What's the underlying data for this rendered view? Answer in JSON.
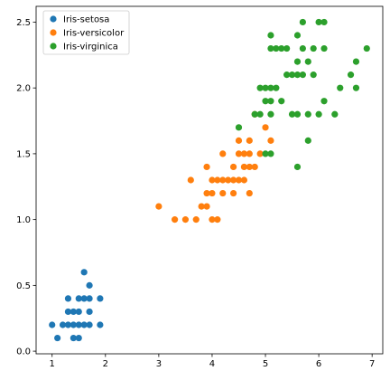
{
  "chart_data": {
    "type": "scatter",
    "title": "",
    "xlabel": "",
    "ylabel": "",
    "xlim": [
      0.7,
      7.2
    ],
    "ylim": [
      -0.02,
      2.62
    ],
    "x_ticks": [
      1,
      2,
      3,
      4,
      5,
      6,
      7
    ],
    "y_ticks": [
      0.0,
      0.5,
      1.0,
      1.5,
      2.0,
      2.5
    ],
    "x_tick_labels": [
      "1",
      "2",
      "3",
      "4",
      "5",
      "6",
      "7"
    ],
    "y_tick_labels": [
      "0.0",
      "0.5",
      "1.0",
      "1.5",
      "2.0",
      "2.5"
    ],
    "grid": false,
    "legend": "top-left",
    "series": [
      {
        "name": "Iris-setosa",
        "color": "#1f77b4",
        "points": [
          [
            1.0,
            0.2
          ],
          [
            1.1,
            0.1
          ],
          [
            1.2,
            0.2
          ],
          [
            1.3,
            0.2
          ],
          [
            1.3,
            0.3
          ],
          [
            1.3,
            0.4
          ],
          [
            1.4,
            0.1
          ],
          [
            1.4,
            0.2
          ],
          [
            1.4,
            0.3
          ],
          [
            1.5,
            0.1
          ],
          [
            1.5,
            0.2
          ],
          [
            1.5,
            0.3
          ],
          [
            1.5,
            0.4
          ],
          [
            1.6,
            0.2
          ],
          [
            1.6,
            0.4
          ],
          [
            1.6,
            0.6
          ],
          [
            1.7,
            0.2
          ],
          [
            1.7,
            0.3
          ],
          [
            1.7,
            0.4
          ],
          [
            1.7,
            0.5
          ],
          [
            1.9,
            0.2
          ],
          [
            1.9,
            0.4
          ]
        ]
      },
      {
        "name": "Iris-versicolor",
        "color": "#ff7f0e",
        "points": [
          [
            3.0,
            1.1
          ],
          [
            3.3,
            1.0
          ],
          [
            3.5,
            1.0
          ],
          [
            3.6,
            1.3
          ],
          [
            3.7,
            1.0
          ],
          [
            3.8,
            1.1
          ],
          [
            3.9,
            1.1
          ],
          [
            3.9,
            1.2
          ],
          [
            3.9,
            1.4
          ],
          [
            4.0,
            1.0
          ],
          [
            4.0,
            1.2
          ],
          [
            4.0,
            1.3
          ],
          [
            4.1,
            1.0
          ],
          [
            4.1,
            1.3
          ],
          [
            4.2,
            1.2
          ],
          [
            4.2,
            1.3
          ],
          [
            4.2,
            1.5
          ],
          [
            4.3,
            1.3
          ],
          [
            4.4,
            1.2
          ],
          [
            4.4,
            1.3
          ],
          [
            4.4,
            1.4
          ],
          [
            4.5,
            1.3
          ],
          [
            4.5,
            1.5
          ],
          [
            4.5,
            1.6
          ],
          [
            4.6,
            1.3
          ],
          [
            4.6,
            1.4
          ],
          [
            4.6,
            1.5
          ],
          [
            4.7,
            1.2
          ],
          [
            4.7,
            1.4
          ],
          [
            4.7,
            1.5
          ],
          [
            4.7,
            1.6
          ],
          [
            4.8,
            1.4
          ],
          [
            4.8,
            1.8
          ],
          [
            4.9,
            1.5
          ],
          [
            5.0,
            1.7
          ],
          [
            5.1,
            1.6
          ]
        ]
      },
      {
        "name": "Iris-virginica",
        "color": "#2ca02c",
        "points": [
          [
            4.5,
            1.7
          ],
          [
            4.8,
            1.8
          ],
          [
            4.9,
            1.8
          ],
          [
            4.9,
            2.0
          ],
          [
            5.0,
            1.5
          ],
          [
            5.0,
            1.9
          ],
          [
            5.0,
            2.0
          ],
          [
            5.1,
            1.5
          ],
          [
            5.1,
            1.8
          ],
          [
            5.1,
            1.9
          ],
          [
            5.1,
            2.0
          ],
          [
            5.1,
            2.3
          ],
          [
            5.1,
            2.4
          ],
          [
            5.2,
            2.0
          ],
          [
            5.2,
            2.3
          ],
          [
            5.3,
            1.9
          ],
          [
            5.3,
            2.3
          ],
          [
            5.4,
            2.1
          ],
          [
            5.4,
            2.3
          ],
          [
            5.5,
            1.8
          ],
          [
            5.5,
            2.1
          ],
          [
            5.6,
            1.4
          ],
          [
            5.6,
            1.8
          ],
          [
            5.6,
            2.1
          ],
          [
            5.6,
            2.2
          ],
          [
            5.6,
            2.4
          ],
          [
            5.7,
            2.1
          ],
          [
            5.7,
            2.3
          ],
          [
            5.7,
            2.5
          ],
          [
            5.8,
            1.6
          ],
          [
            5.8,
            1.8
          ],
          [
            5.8,
            2.2
          ],
          [
            5.9,
            2.1
          ],
          [
            5.9,
            2.3
          ],
          [
            6.0,
            1.8
          ],
          [
            6.0,
            2.5
          ],
          [
            6.1,
            1.9
          ],
          [
            6.1,
            2.3
          ],
          [
            6.1,
            2.5
          ],
          [
            6.3,
            1.8
          ],
          [
            6.4,
            2.0
          ],
          [
            6.6,
            2.1
          ],
          [
            6.7,
            2.0
          ],
          [
            6.7,
            2.2
          ],
          [
            6.9,
            2.3
          ]
        ]
      }
    ]
  }
}
